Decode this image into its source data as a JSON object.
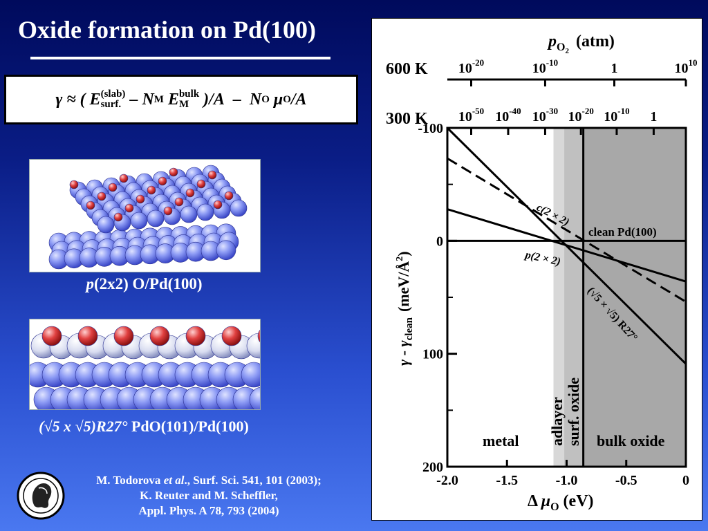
{
  "slide": {
    "title": "Oxide formation on Pd(100)",
    "formula": {
      "gamma": "γ",
      "approx": "≈",
      "open": "(",
      "E": "E",
      "E_sup": "(slab)",
      "E_sub": "surf.",
      "minus1": "–",
      "N": "N",
      "N_sub": "M",
      "E2": "E",
      "E2_sup": "bulk",
      "E2_sub": "M",
      "close": ")/A",
      "minus2": "–",
      "NO": "N",
      "NO_sub": "O",
      "mu": "μ",
      "mu_sub": "O",
      "tail": "/A"
    },
    "figure1_caption": {
      "p": "p",
      "rest": "(2x2) O/Pd(100)"
    },
    "figure2_caption": {
      "italic": "(√5 x √5)R27°",
      "rest": " PdO(101)/Pd(100)"
    },
    "references": [
      {
        "pre": "M. Todorova ",
        "em": "et al",
        "post": "., Surf. Sci. 541, 101 (2003);"
      },
      {
        "pre": "K. Reuter and M. Scheffler,",
        "em": "",
        "post": ""
      },
      {
        "pre": "Appl. Phys. A 78, 793 (2004)",
        "em": "",
        "post": ""
      }
    ]
  },
  "colors": {
    "background_top": "#000a5c",
    "background_bottom": "#4a78f0",
    "atom_pd": "#6f7ff0",
    "atom_o": "#e03030",
    "region_adlayer": "#d8d8d8",
    "region_surf_oxide": "#c0c0c0",
    "region_bulk_oxide": "#a8a8a8"
  },
  "chart_data": {
    "type": "line",
    "x": [
      -2.0,
      0.0
    ],
    "xlim": [
      -2.0,
      0.0
    ],
    "ylim": [
      -100,
      200
    ],
    "y_inverted": true,
    "xticks": [
      "-2.0",
      "-1.5",
      "-1.0",
      "-0.5",
      "0"
    ],
    "xtick_values": [
      -2.0,
      -1.5,
      -1.0,
      -0.5,
      0.0
    ],
    "yticks": [
      "-100",
      "0",
      "100",
      "200"
    ],
    "ytick_values": [
      -100,
      0,
      100,
      200
    ],
    "xlabel": {
      "delta": "Δ",
      "mu": "μ",
      "sub": "O",
      "unit": "(eV)"
    },
    "ylabel": {
      "g1": "γ",
      "dash": " - ",
      "g2": "γ",
      "sub": "clean",
      "unit": "(meV/Å",
      "sup": "2",
      "close": ")"
    },
    "series": [
      {
        "name": "clean Pd(100)",
        "values": [
          0,
          0
        ],
        "style": "solid"
      },
      {
        "name": "p(2 × 2)",
        "values": [
          -28,
          36
        ],
        "style": "solid"
      },
      {
        "name": "c(2 × 2)",
        "values": [
          -73,
          54
        ],
        "style": "dashed"
      },
      {
        "name": "(√5 × √5) R27°",
        "values": [
          -100,
          109
        ],
        "style": "solid"
      }
    ],
    "regions": [
      {
        "name": "metal",
        "from": -2.0,
        "to": -1.11
      },
      {
        "name": "adlayer",
        "from": -1.11,
        "to": -1.02
      },
      {
        "name": "surf. oxide",
        "from": -1.02,
        "to": -0.86
      },
      {
        "name": "bulk oxide",
        "from": -0.86,
        "to": 0.0
      }
    ],
    "top_axes": [
      {
        "label": "600 K",
        "ticks": [
          "10^-20",
          "10^-10",
          "1",
          "10^10"
        ],
        "tick_values_eV": [
          -1.8,
          -1.18,
          -0.6,
          0.0
        ]
      },
      {
        "label": "300 K",
        "ticks": [
          "10^-50",
          "10^-40",
          "10^-30",
          "10^-20",
          "10^-10",
          "1"
        ],
        "tick_values_eV": [
          -1.8,
          -1.49,
          -1.18,
          -0.88,
          -0.58,
          -0.27
        ]
      }
    ],
    "top_title": {
      "p": "p",
      "sub": "O",
      "subsub": "2",
      "unit": "(atm)"
    }
  }
}
